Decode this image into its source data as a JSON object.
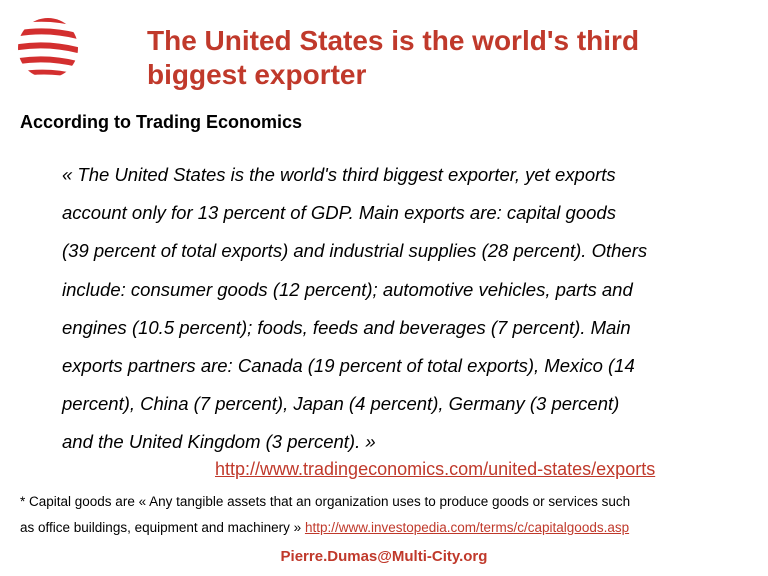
{
  "slide": {
    "title_line1": "The United States is the world's third",
    "title_line2": "biggest exporter",
    "subheading": "According to Trading Economics",
    "quote_lines": [
      "« The United States is the world's third biggest exporter, yet exports",
      "account only for 13 percent of GDP. Main exports are: capital goods",
      "(39 percent of total exports) and industrial supplies (28 percent). Others",
      "include: consumer goods (12 percent); automotive vehicles, parts and",
      "engines (10.5 percent); foods, feeds and beverages (7 percent). Main",
      "exports partners are: Canada (19 percent of total exports), Mexico (14",
      "percent), China (7 percent), Japan (4 percent), Germany (3 percent)",
      "and the United Kingdom (3 percent). »"
    ],
    "quote_link": "http://www.tradingeconomics.com/united-states/exports",
    "footnote_line1": "* Capital goods are « Any tangible assets that an organization uses to produce goods or services such",
    "footnote_line2_text": "as office buildings, equipment and machinery » ",
    "footnote_link": "http://www.investopedia.com/terms/c/capitalgoods.asp",
    "contact": "Pierre.Dumas@Multi-City.org"
  },
  "colors": {
    "accent": "#c0392b"
  },
  "logo_icon": "striped-globe-icon"
}
